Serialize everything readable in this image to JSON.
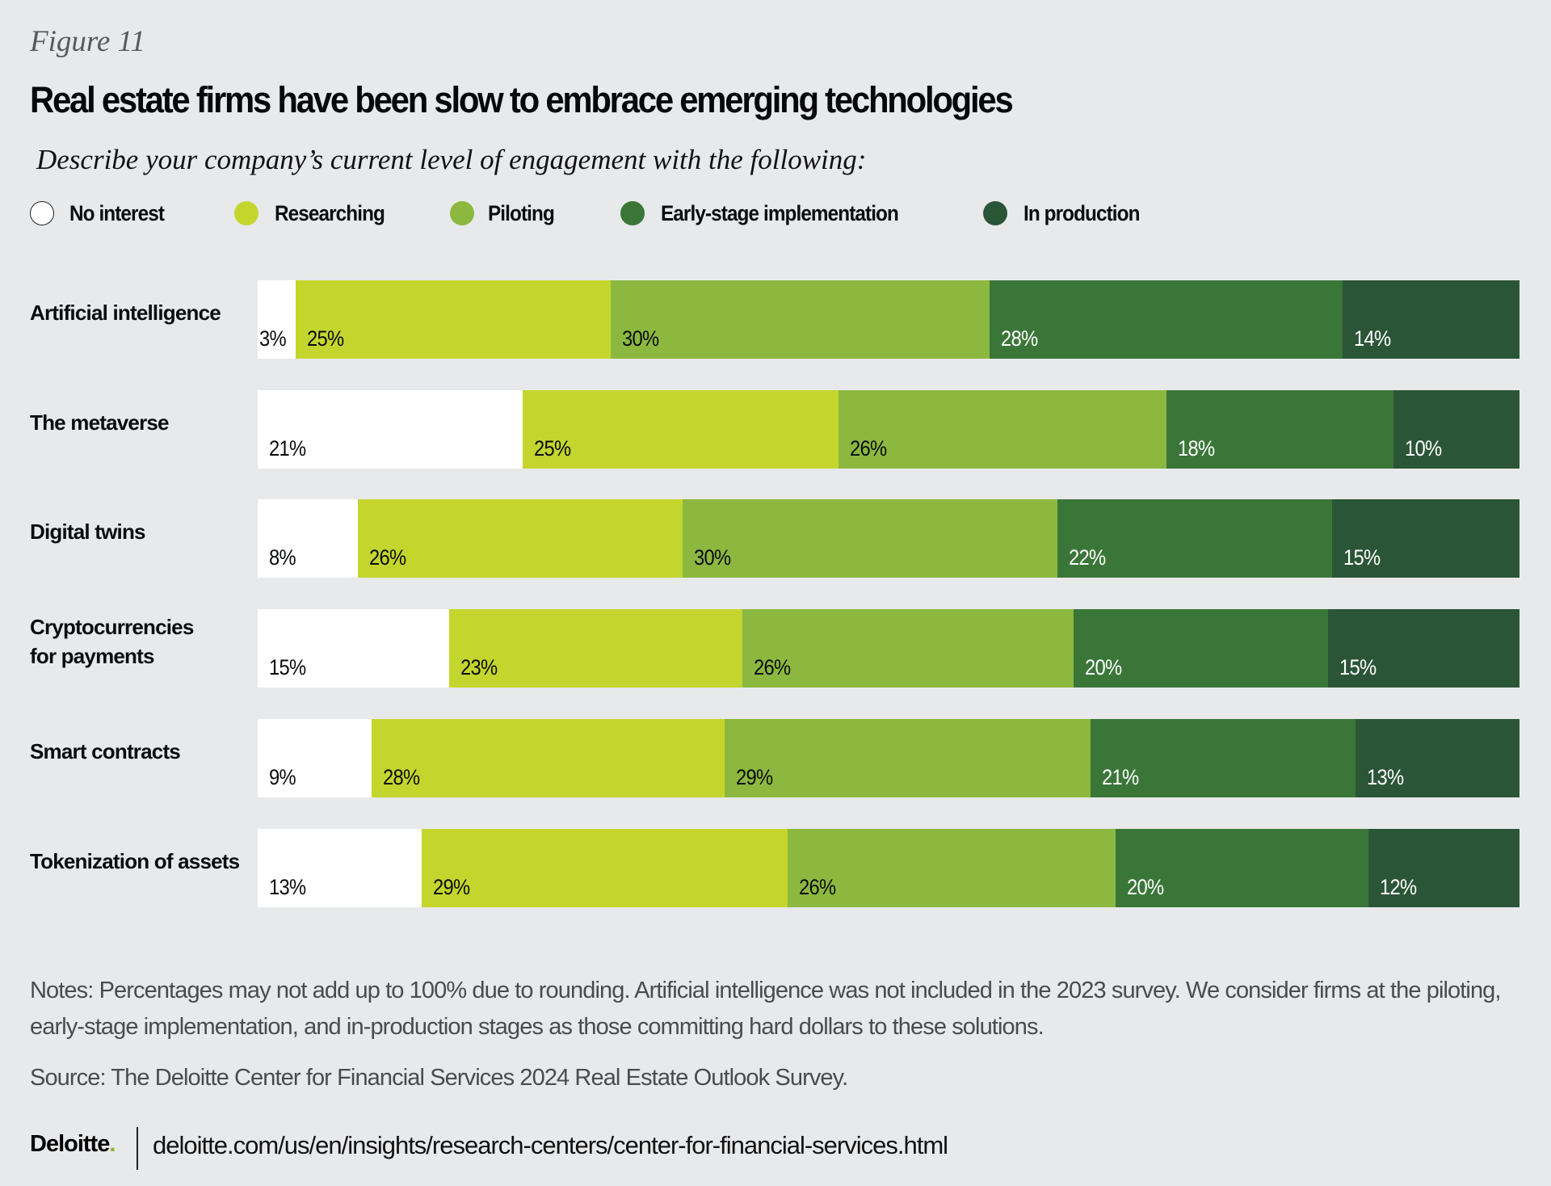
{
  "figure_label": "Figure 11",
  "chart_data": {
    "type": "bar",
    "orientation": "horizontal",
    "stacked": true,
    "normalized": true,
    "title": "Real estate firms have been slow to embrace emerging technologies",
    "subtitle": "Describe your company’s current level of engagement with the following:",
    "xlabel": "",
    "ylabel": "",
    "legend_position": "top-left",
    "grid": false,
    "categories": [
      "Artificial intelligence",
      "The metaverse",
      "Digital twins",
      "Cryptocurrencies\nfor payments",
      "Smart contracts",
      "Tokenization of assets"
    ],
    "series": [
      {
        "name": "No interest",
        "color": "#ffffff",
        "label_color": "#0a0c0e",
        "values": [
          3,
          21,
          8,
          15,
          9,
          13
        ]
      },
      {
        "name": "Researching",
        "color": "#c4d62e",
        "label_color": "#0a0c0e",
        "values": [
          25,
          25,
          26,
          23,
          28,
          29
        ]
      },
      {
        "name": "Piloting",
        "color": "#8cb840",
        "label_color": "#0a0c0e",
        "values": [
          30,
          26,
          30,
          26,
          29,
          26
        ]
      },
      {
        "name": "Early-stage implementation",
        "color": "#3a7638",
        "label_color": "#ffffff",
        "values": [
          28,
          18,
          22,
          20,
          21,
          20
        ]
      },
      {
        "name": "In production",
        "color": "#2b5537",
        "label_color": "#ffffff",
        "values": [
          14,
          10,
          15,
          15,
          13,
          12
        ]
      }
    ],
    "value_suffix": "%"
  },
  "notes": "Notes: Percentages may not add up to 100% due to rounding. Artificial intelligence was not included in the 2023 survey. We consider firms at the piloting, early-stage implementation, and in-production stages as those committing hard dollars to these solutions.",
  "source": "Source: The Deloitte Center for Financial Services 2024 Real Estate Outlook Survey.",
  "footer": {
    "logo_text": "Deloitte",
    "logo_dot": ".",
    "url": "deloitte.com/us/en/insights/research-centers/center-for-financial-services.html"
  }
}
